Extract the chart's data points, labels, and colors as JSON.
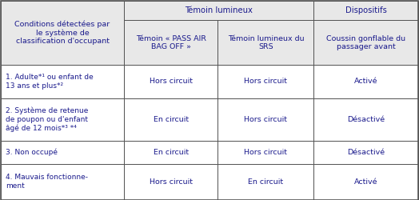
{
  "header_top_label": "Témoin lumineux",
  "header_dispositifs": "Dispositifs",
  "col0_header": "Conditions détectées par\nle système de\nclassification d'occupant",
  "col1_header": "Témoin « PASS AIR\nBAG OFF »",
  "col2_header": "Témoin lumineux du\nSRS",
  "col3_header": "Coussin gonflable du\npassager avant",
  "rows": [
    [
      "1. Adulte*¹ ou enfant de\n13 ans et plus*²",
      "Hors circuit",
      "Hors circuit",
      "Activé"
    ],
    [
      "2. Système de retenue\nde poupon ou d'enfant\nâgé de 12 mois*³ *⁴",
      "En circuit",
      "Hors circuit",
      "Désactivé"
    ],
    [
      "3. Non occupé",
      "En circuit",
      "Hors circuit",
      "Désactivé"
    ],
    [
      "4. Mauvais fonctionne-\nment",
      "Hors circuit",
      "En circuit",
      "Activé"
    ]
  ],
  "header_bg": "#e8e8e8",
  "body_bg": "#ffffff",
  "border_color": "#555555",
  "text_color": "#1a1a8c",
  "font_size": 6.8,
  "header_font_size": 7.2,
  "fig_width": 5.24,
  "fig_height": 2.5,
  "dpi": 100
}
